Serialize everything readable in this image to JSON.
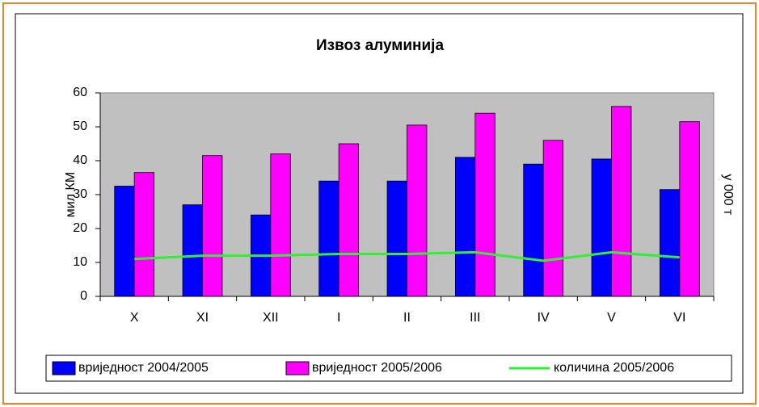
{
  "chart_data": {
    "type": "bar",
    "title": "Извоз алуминија",
    "y_label": "мил КМ",
    "y2_label": "у 000 т",
    "categories": [
      "X",
      "XI",
      "XII",
      "I",
      "II",
      "III",
      "IV",
      "V",
      "VI"
    ],
    "series": [
      {
        "name": "вриједност 2004/2005",
        "type": "bar",
        "color": "#0000ff",
        "values": [
          32.5,
          27,
          24,
          34,
          34,
          41,
          39,
          40.5,
          31.5
        ]
      },
      {
        "name": "вриједност 2005/2006",
        "type": "bar",
        "color": "#ff00ff",
        "values": [
          36.5,
          41.5,
          42,
          45,
          50.5,
          54,
          46,
          56,
          51.5
        ]
      },
      {
        "name": "количина 2005/2006",
        "type": "line",
        "color": "#33ee33",
        "values": [
          11,
          12,
          12,
          12.5,
          12.5,
          13,
          10.5,
          13,
          11.5
        ]
      }
    ],
    "ylim": [
      0,
      60
    ],
    "yticks": [
      0,
      10,
      20,
      30,
      40,
      50,
      60
    ],
    "legend": "bottom"
  }
}
